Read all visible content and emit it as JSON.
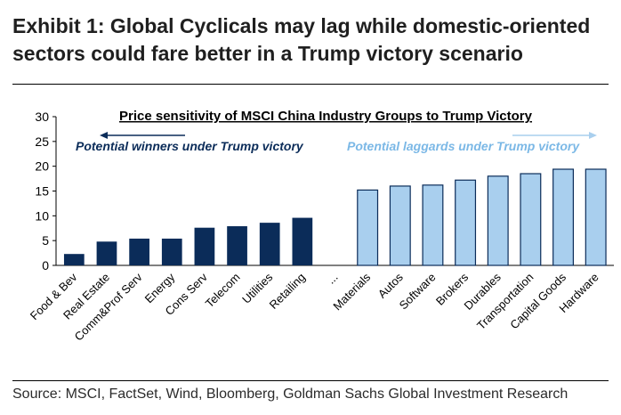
{
  "exhibit": {
    "title_line1": "Exhibit 1: Global Cyclicals may lag while domestic-oriented",
    "title_line2": "sectors could fare better in a Trump victory scenario",
    "source": "Source: MSCI, FactSet, Wind, Bloomberg, Goldman Sachs Global Investment Research"
  },
  "chart_data": {
    "type": "bar",
    "title": "Price sensitivity of MSCI China Industry Groups to Trump Victory",
    "xlabel": "",
    "ylabel": "",
    "ylim": [
      0,
      30
    ],
    "yticks": [
      0,
      5,
      10,
      15,
      20,
      25,
      30
    ],
    "grid": false,
    "categories": [
      "Food & Bev",
      "Real Estate",
      "Comm&Prof Serv",
      "Energy",
      "Cons Serv",
      "Telecom",
      "Utilities",
      "Retailing",
      "...",
      "Materials",
      "Autos",
      "Software",
      "Brokers",
      "Durables",
      "Transportation",
      "Capital Goods",
      "Hardware"
    ],
    "values": [
      2.3,
      4.8,
      5.4,
      5.4,
      7.6,
      7.9,
      8.6,
      9.6,
      null,
      15.2,
      16.0,
      16.2,
      17.2,
      18.0,
      18.5,
      19.4,
      19.4
    ],
    "groups": [
      "winners",
      "winners",
      "winners",
      "winners",
      "winners",
      "winners",
      "winners",
      "winners",
      "gap",
      "laggards",
      "laggards",
      "laggards",
      "laggards",
      "laggards",
      "laggards",
      "laggards",
      "laggards"
    ],
    "annotations": {
      "winners": "Potential winners under Trump victory",
      "laggards": "Potential laggards under Trump victory"
    },
    "colors": {
      "winners": "#0b2c59",
      "laggards": "#a9cfee",
      "laggards_edge": "#0b2c59",
      "winners_text": "#0b2c59",
      "laggards_text": "#7bb8e6"
    }
  }
}
